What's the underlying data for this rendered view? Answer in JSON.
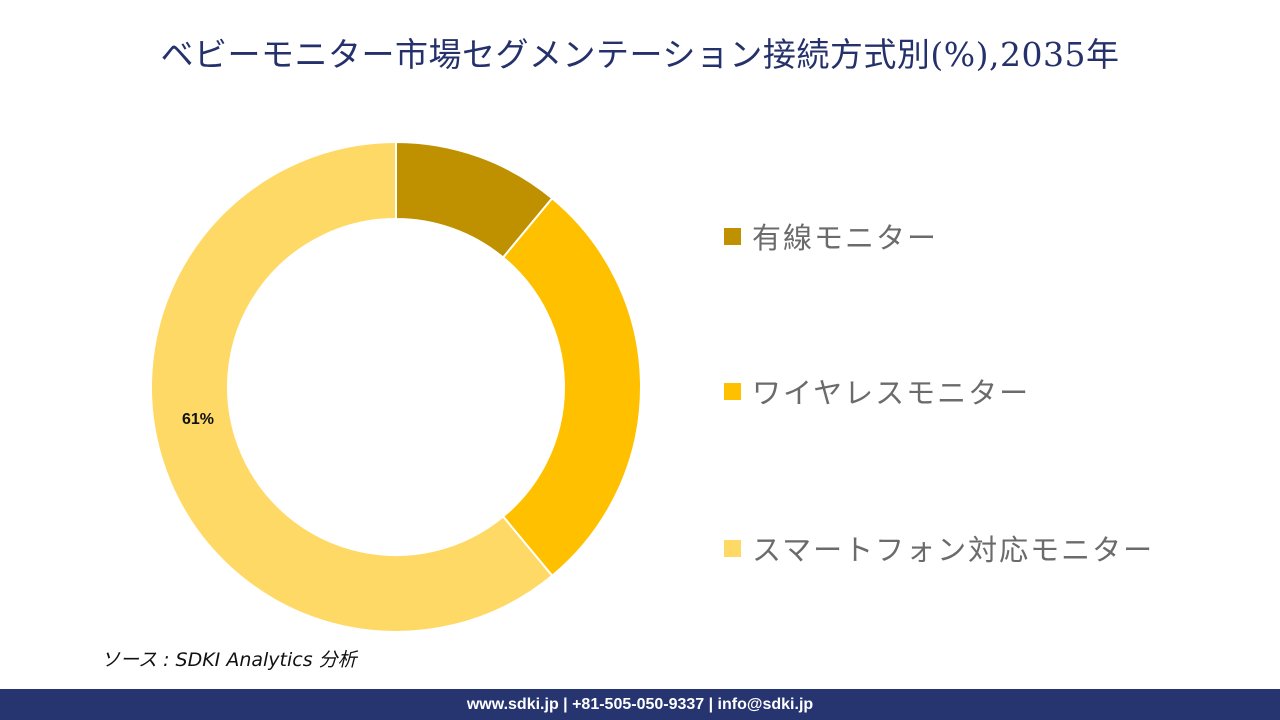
{
  "header": {
    "title": "ベビーモニター市場セグメンテーション接続方式別(%),2035年"
  },
  "chart_data": {
    "type": "pie",
    "subtype": "donut",
    "title": "ベビーモニター市場セグメンテーション接続方式別(%),2035年",
    "categories": [
      "有線モニター",
      "ワイヤレスモニター",
      "スマートフォン対応モニター"
    ],
    "values": [
      11,
      28,
      61
    ],
    "colors": [
      "#bf9000",
      "#ffc000",
      "#ffd966"
    ],
    "data_labels": [
      {
        "category": "スマートフォン対応モニター",
        "text": "61%"
      }
    ],
    "legend_position": "right",
    "start_angle_deg": 0,
    "direction": "clockwise"
  },
  "legend": {
    "items": [
      {
        "label": "有線モニター",
        "color": "#bf9000"
      },
      {
        "label": "ワイヤレスモニター",
        "color": "#ffc000"
      },
      {
        "label": "スマートフォン対応モニター",
        "color": "#ffd966"
      }
    ]
  },
  "labels": {
    "smartphone_pct": "61%"
  },
  "source": {
    "text": "ソース : SDKI Analytics 分析"
  },
  "footer": {
    "text": "www.sdki.jp | +81-505-050-9337 | info@sdki.jp"
  }
}
